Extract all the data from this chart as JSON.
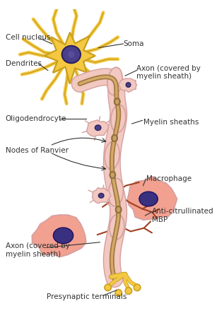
{
  "background_color": "#ffffff",
  "title": "",
  "figsize": [
    3.17,
    4.5
  ],
  "dpi": 100,
  "colors": {
    "soma_body": "#F5C842",
    "soma_outline": "#C8A020",
    "soma_nucleus": "#4A3F8A",
    "soma_nucleus_outline": "#2A2060",
    "axon_core": "#D4A96A",
    "axon_outline": "#A07840",
    "myelin_sheath": "#F2C8C0",
    "myelin_outline": "#D4A0A0",
    "node_ranvier": "#C8A060",
    "node_outline": "#907040",
    "oligodendrocyte_body": "#F0D8D0",
    "oligodendrocyte_nucleus": "#4A3F8A",
    "macrophage_body": "#F2A090",
    "macrophage_nucleus": "#3A3080",
    "anti_mbp_branches": "#A04020",
    "presynaptic_yellow": "#F5C842",
    "presynaptic_outline": "#C8A020",
    "label_color": "#333333",
    "arrow_color": "#333333",
    "dendrite_color": "#F5C842",
    "dendrite_outline": "#C8A020"
  },
  "labels": {
    "cell_nucleus": "Cell nucleus",
    "soma": "Soma",
    "dendrites": "Dendrites",
    "axon_covered": "Axon (covered by\nmyelin sheath)",
    "oligodendrocyte": "Oligodendrocyte",
    "myelin_sheaths": "Myelin sheaths",
    "nodes_ranvier": "Nodes of Ranvier",
    "macrophage": "Macrophage",
    "anti_citrullinated": "Anti-citrullinated\nMBP",
    "axon_covered2": "Axon (covered by\nmyelin sheath)",
    "presynaptic": "Presynaptic terminals"
  }
}
